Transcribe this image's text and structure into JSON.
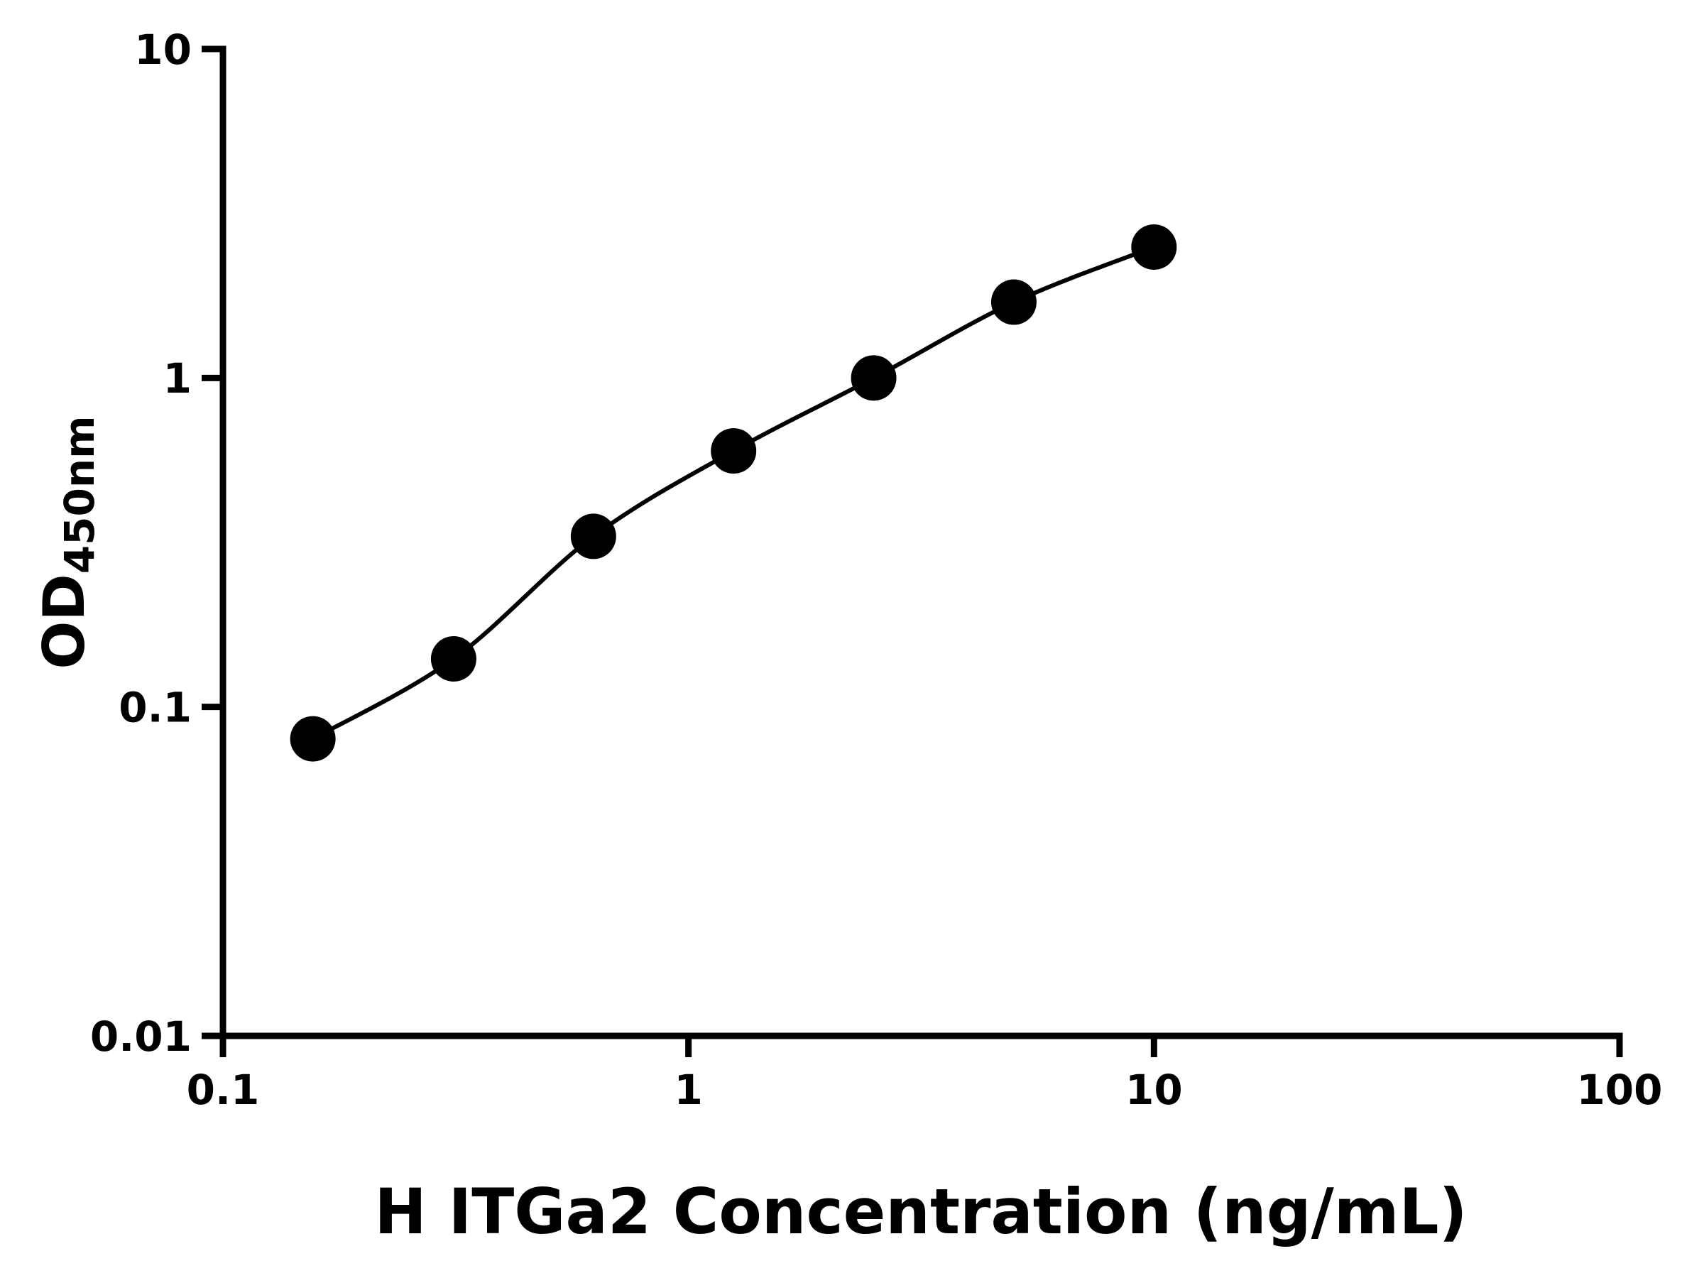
{
  "chart_data": {
    "type": "scatter",
    "title": "",
    "xlabel": "H ITGa2 Concentration (ng/mL)",
    "ylabel_main": "OD",
    "ylabel_sub": "450nm",
    "x_scale": "log",
    "y_scale": "log",
    "xlim": [
      0.1,
      100
    ],
    "ylim": [
      0.01,
      10
    ],
    "x_ticks": [
      0.1,
      1,
      10,
      100
    ],
    "x_tick_labels": [
      "0.1",
      "1",
      "10",
      "100"
    ],
    "y_ticks": [
      0.01,
      0.1,
      1,
      10
    ],
    "y_tick_labels": [
      "0.01",
      "0.1",
      "1",
      "10"
    ],
    "grid": false,
    "legend": "none",
    "marker_color": "#000000",
    "line_color": "#000000",
    "axis_color": "#000000",
    "background_color": "#ffffff",
    "x": [
      0.156,
      0.313,
      0.625,
      1.25,
      2.5,
      5,
      10
    ],
    "y": [
      0.08,
      0.14,
      0.33,
      0.6,
      1.0,
      1.7,
      2.5
    ]
  }
}
